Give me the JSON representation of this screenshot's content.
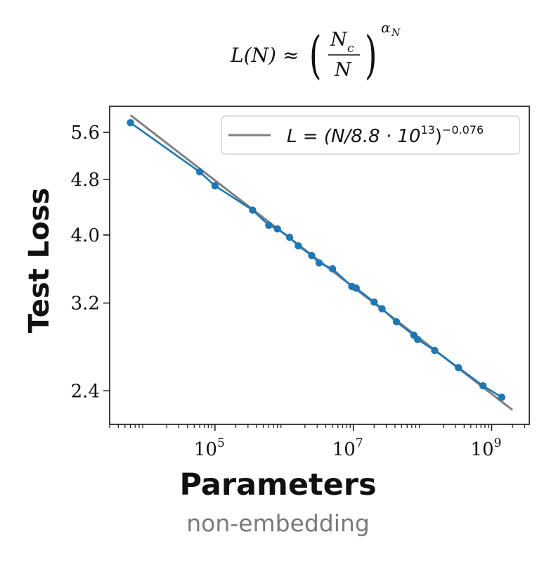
{
  "chart_data": {
    "type": "line",
    "scale": {
      "x": "log",
      "y": "log"
    },
    "formula": {
      "lhs": "L(N) ≈",
      "numerator": "N",
      "numerator_sub": "c",
      "denominator": "N",
      "exponent": "α",
      "exponent_sub": "N"
    },
    "xlabel": "Parameters",
    "xlabel_sub": "non-embedding",
    "ylabel": "Test Loss",
    "x_ticks": [
      {
        "value": 100000,
        "base": "10",
        "exp": "5"
      },
      {
        "value": 10000000,
        "base": "10",
        "exp": "7"
      },
      {
        "value": 1000000000,
        "base": "10",
        "exp": "9"
      }
    ],
    "y_ticks": [
      {
        "value": 2.4,
        "label": "2.4"
      },
      {
        "value": 3.2,
        "label": "3.2"
      },
      {
        "value": 4.0,
        "label": "4.0"
      },
      {
        "value": 4.8,
        "label": "4.8"
      },
      {
        "value": 5.6,
        "label": "5.6"
      }
    ],
    "xlim": [
      3000,
      3500000000
    ],
    "ylim": [
      2.15,
      6.1
    ],
    "legend": {
      "position": "top-right",
      "lhs": "L = (N/8.8 · 10",
      "sup_inner": "13",
      "rhs": ")",
      "sup_outer": "−0.076"
    },
    "fit": {
      "Nc": 88000000000000.0,
      "alpha": 0.076,
      "x_range": [
        6000,
        2000000000
      ],
      "color": "#808080"
    },
    "series": [
      {
        "color": "#1f77b4",
        "points": [
          {
            "x": 6000,
            "y": 5.78
          },
          {
            "x": 60000,
            "y": 4.92
          },
          {
            "x": 100000,
            "y": 4.7
          },
          {
            "x": 350000,
            "y": 4.34
          },
          {
            "x": 600000,
            "y": 4.13
          },
          {
            "x": 800000,
            "y": 4.08
          },
          {
            "x": 1200000,
            "y": 3.97
          },
          {
            "x": 1600000,
            "y": 3.86
          },
          {
            "x": 2500000,
            "y": 3.74
          },
          {
            "x": 3200000,
            "y": 3.65
          },
          {
            "x": 5000000,
            "y": 3.58
          },
          {
            "x": 9500000,
            "y": 3.38
          },
          {
            "x": 11000000,
            "y": 3.36
          },
          {
            "x": 20000000,
            "y": 3.21
          },
          {
            "x": 26000000,
            "y": 3.14
          },
          {
            "x": 42000000,
            "y": 3.01
          },
          {
            "x": 75000000,
            "y": 2.88
          },
          {
            "x": 85000000,
            "y": 2.84
          },
          {
            "x": 150000000,
            "y": 2.74
          },
          {
            "x": 330000000,
            "y": 2.59
          },
          {
            "x": 750000000,
            "y": 2.44
          },
          {
            "x": 1400000000,
            "y": 2.35
          }
        ]
      }
    ]
  }
}
